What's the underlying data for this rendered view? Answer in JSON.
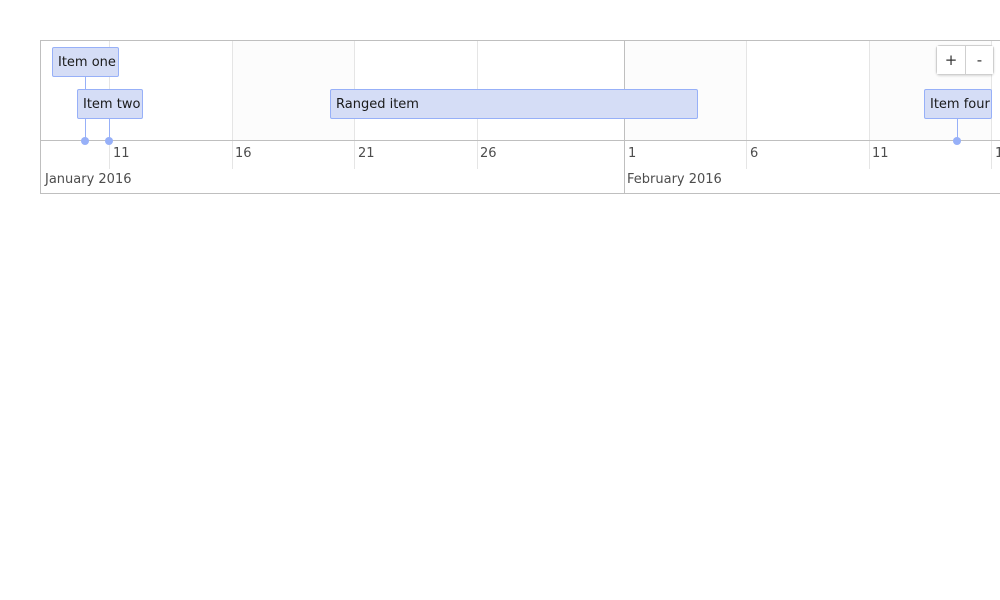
{
  "timeline": {
    "items": [
      {
        "label": "Item one",
        "type": "point"
      },
      {
        "label": "Item two",
        "type": "point"
      },
      {
        "label": "Ranged item",
        "type": "range"
      },
      {
        "label": "Item four",
        "type": "point"
      }
    ],
    "axis": {
      "ticks": [
        "11",
        "16",
        "21",
        "26",
        "1",
        "6",
        "11",
        "1"
      ],
      "months": [
        "January 2016",
        "February 2016"
      ]
    },
    "zoom": {
      "in_label": "+",
      "out_label": "-"
    }
  },
  "colors": {
    "item_fill": "#d5ddf6",
    "item_border": "#97b0f8",
    "grid_line": "#e5e5e5",
    "major_line": "#bfbfbf"
  }
}
